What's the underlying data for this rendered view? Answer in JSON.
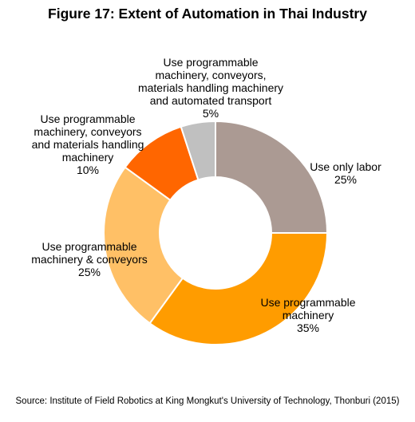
{
  "title": "Figure 17: Extent of Automation in Thai Industry",
  "source": "Source: Institute of Field Robotics at King Mongkut's University of Technology, Thonburi (2015)",
  "chart_data": {
    "type": "pie",
    "donut": true,
    "slices": [
      {
        "label": "Use only labor",
        "value": 25,
        "display": "25%",
        "color": "#ab9a93"
      },
      {
        "label": "Use programmable machinery",
        "value": 35,
        "display": "35%",
        "color": "#ff9c00"
      },
      {
        "label": "Use programmable machinery & conveyors",
        "value": 25,
        "display": "25%",
        "color": "#ffc066"
      },
      {
        "label": "Use programmable machinery, conveyors and materials handling machinery",
        "value": 10,
        "display": "10%",
        "color": "#ff6600"
      },
      {
        "label": "Use programmable machinery, conveyors, materials handling machinery and automated transport",
        "value": 5,
        "display": "5%",
        "color": "#c0c0c0"
      }
    ]
  }
}
